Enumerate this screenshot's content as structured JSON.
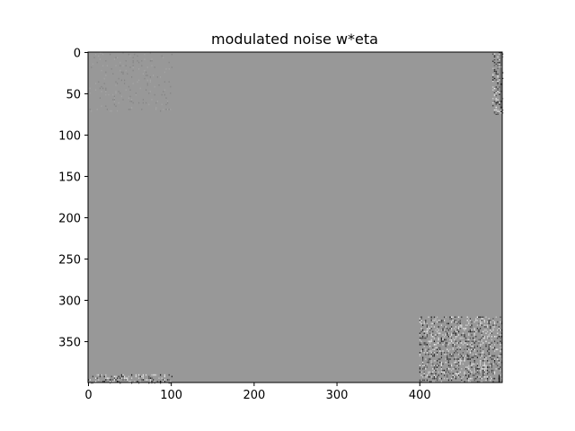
{
  "chart_data": {
    "type": "heatmap",
    "title": "modulated noise w*eta",
    "colormap": "gray",
    "xlabel": "",
    "ylabel": "",
    "xlim": [
      0,
      499
    ],
    "ylim": [
      399,
      0
    ],
    "x_ticks": [
      0,
      100,
      200,
      300,
      400
    ],
    "y_ticks": [
      0,
      50,
      100,
      150,
      200,
      250,
      300,
      350
    ],
    "x_tick_labels": [
      "0",
      "100",
      "200",
      "300",
      "400"
    ],
    "y_tick_labels": [
      "0",
      "50",
      "100",
      "150",
      "200",
      "250",
      "300",
      "350"
    ],
    "background_color": "#989898",
    "noise_regions": [
      {
        "name": "top-left",
        "x": [
          0,
          100
        ],
        "y": [
          0,
          70
        ],
        "intensity": "faint"
      },
      {
        "name": "top-right",
        "x": [
          488,
          499
        ],
        "y": [
          0,
          75
        ],
        "intensity": "strong"
      },
      {
        "name": "bottom-left",
        "x": [
          0,
          100
        ],
        "y": [
          390,
          399
        ],
        "intensity": "strong"
      },
      {
        "name": "bottom-right",
        "x": [
          400,
          499
        ],
        "y": [
          320,
          399
        ],
        "intensity": "strong"
      }
    ]
  }
}
